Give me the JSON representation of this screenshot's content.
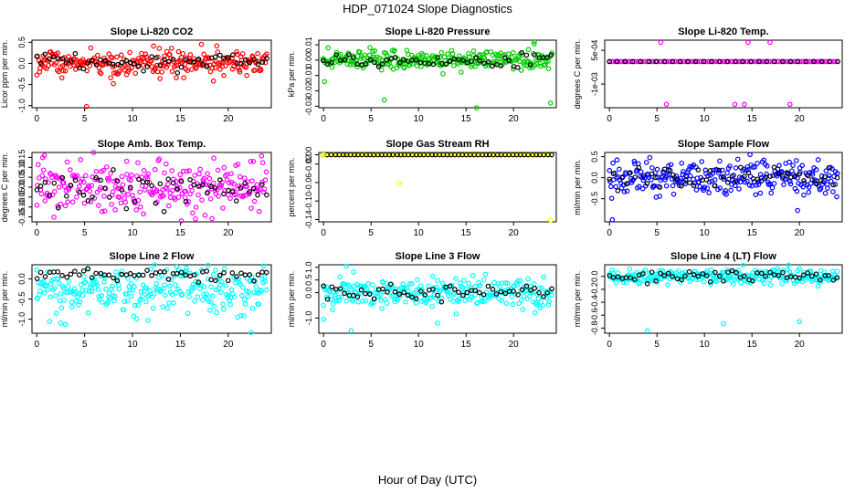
{
  "page": {
    "title": "HDP_071024  Slope Diagnostics",
    "x_caption": "Hour of Day (UTC)"
  },
  "colors": {
    "black": "#000000",
    "red": "#ff0000",
    "green": "#00cd00",
    "magenta": "#ff00ff",
    "yellow": "#ffff00",
    "blue": "#0000ff",
    "cyan": "#00ffff"
  },
  "chart_data": [
    {
      "type": "scatter",
      "title": "Slope Li-820 CO2",
      "ylabel": "Licor ppm per min.",
      "xlim": [
        -0.5,
        24.5
      ],
      "ylim": [
        -1.05,
        0.55
      ],
      "x_ticks": [
        "0",
        "5",
        "10",
        "15",
        "20"
      ],
      "y_ticks": [
        "-1.0",
        "-0.5",
        "0.0",
        "0.5"
      ],
      "y_tick_values": [
        -1.0,
        -0.5,
        0.0,
        0.5
      ],
      "series_colors": [
        "red",
        "black"
      ],
      "series": [
        {
          "values": {
            "n": 260,
            "center": 0.0,
            "spread": 0.16
          }
        },
        {
          "values": {
            "n": 55,
            "center": 0.05,
            "spread": 0.1
          }
        }
      ],
      "outliers": [
        [
          5.2,
          -1.02
        ],
        [
          8.0,
          -0.48
        ],
        [
          17.2,
          0.45
        ]
      ]
    },
    {
      "type": "scatter",
      "title": "Slope Li-820 Pressure",
      "ylabel": "kPa per min.",
      "xlim": [
        -0.5,
        24.5
      ],
      "ylim": [
        -0.031,
        0.013
      ],
      "x_ticks": [
        "0",
        "5",
        "10",
        "15",
        "20"
      ],
      "y_ticks": [
        "-0.03",
        "-0.02",
        "-0.01",
        "0.00",
        "0.01"
      ],
      "y_tick_values": [
        -0.03,
        -0.02,
        -0.01,
        0.0,
        0.01
      ],
      "series_colors": [
        "green",
        "black"
      ],
      "series": [
        {
          "values": {
            "n": 260,
            "center": 0.0,
            "spread": 0.003
          }
        },
        {
          "values": {
            "n": 55,
            "center": -0.001,
            "spread": 0.002
          }
        }
      ],
      "outliers": [
        [
          0.1,
          -0.014
        ],
        [
          6.4,
          -0.026
        ],
        [
          16.1,
          -0.031
        ],
        [
          22.2,
          0.012
        ],
        [
          23.9,
          -0.028
        ]
      ]
    },
    {
      "type": "scatter",
      "title": "Slope Li-820 Temp.",
      "ylabel": "degrees C per min.",
      "xlim": [
        -0.5,
        24.5
      ],
      "ylim": [
        -0.00205,
        0.00095
      ],
      "x_ticks": [
        "0",
        "5",
        "10",
        "15",
        "20"
      ],
      "y_ticks": [
        "-1e-03",
        "5e-04"
      ],
      "y_tick_values": [
        -0.001,
        0.0005
      ],
      "series_colors": [
        "magenta",
        "black"
      ],
      "series": [
        {
          "values": {
            "n": 110,
            "center": 0.0,
            "spread": 0.0
          }
        },
        {
          "values": {
            "n": 30,
            "center": 0.0,
            "spread": 0.0
          }
        }
      ],
      "outliers": [
        [
          5.4,
          0.00085
        ],
        [
          14.6,
          0.00085
        ],
        [
          16.9,
          0.00085
        ],
        [
          6.0,
          -0.0019
        ],
        [
          13.2,
          -0.0019
        ],
        [
          14.2,
          -0.0019
        ],
        [
          19.0,
          -0.0019
        ]
      ]
    },
    {
      "type": "scatter",
      "title": "Slope Amb. Box Temp.",
      "ylabel": "degrees C per min.",
      "xlim": [
        -0.5,
        24.5
      ],
      "ylim": [
        -0.175,
        0.175
      ],
      "x_ticks": [
        "0",
        "5",
        "10",
        "15",
        "20"
      ],
      "y_ticks": [
        "-0.15",
        "-0.10",
        "-0.05",
        "0.00",
        "0.05",
        "0.10",
        "0.15"
      ],
      "y_tick_values": [
        -0.15,
        -0.1,
        -0.05,
        0.0,
        0.05,
        0.1,
        0.15
      ],
      "series_colors": [
        "magenta",
        "black"
      ],
      "series": [
        {
          "values": {
            "n": 260,
            "center": 0.0,
            "spread": 0.06
          }
        },
        {
          "values": {
            "n": 55,
            "center": 0.0,
            "spread": 0.05
          }
        }
      ],
      "outliers": [
        [
          0.8,
          0.16
        ],
        [
          15.1,
          -0.17
        ]
      ]
    },
    {
      "type": "scatter",
      "title": "Slope Gas Stream RH",
      "ylabel": "percent per min.",
      "xlim": [
        -0.5,
        24.5
      ],
      "ylim": [
        -0.145,
        0.005
      ],
      "x_ticks": [
        "0",
        "5",
        "10",
        "15",
        "20"
      ],
      "y_ticks": [
        "-0.14",
        "-0.10",
        "-0.06",
        "-0.02"
      ],
      "y_tick_values": [
        -0.14,
        -0.1,
        -0.06,
        -0.02
      ],
      "extra_y_ticks": [
        "0.00"
      ],
      "extra_y_tick_values": [
        0.0
      ],
      "series_colors": [
        "yellow",
        "black"
      ],
      "series": [
        {
          "values": {
            "n": 90,
            "center": 0.0,
            "spread": 0.0
          }
        },
        {
          "values": {
            "n": 60,
            "center": 0.0,
            "spread": 0.0
          }
        }
      ],
      "outliers": [
        [
          0.0,
          0.0
        ],
        [
          8.0,
          -0.062
        ],
        [
          23.9,
          -0.141
        ]
      ]
    },
    {
      "type": "scatter",
      "title": "Slope Sample Flow",
      "ylabel": "ml/min per min.",
      "xlim": [
        -0.5,
        24.5
      ],
      "ylim": [
        -1.05,
        0.6
      ],
      "x_ticks": [
        "0",
        "5",
        "10",
        "15",
        "20"
      ],
      "y_ticks": [
        "-0.5",
        "0.0",
        "0.5"
      ],
      "y_tick_values": [
        -0.5,
        0.0,
        0.5
      ],
      "series_colors": [
        "blue",
        "black"
      ],
      "series": [
        {
          "values": {
            "n": 260,
            "center": 0.0,
            "spread": 0.2
          }
        },
        {
          "values": {
            "n": 55,
            "center": 0.0,
            "spread": 0.12
          }
        }
      ],
      "outliers": [
        [
          0.3,
          -1.0
        ],
        [
          14.8,
          0.55
        ],
        [
          19.8,
          -0.78
        ]
      ]
    },
    {
      "type": "scatter",
      "title": "Slope Line 2 Flow",
      "ylabel": "ml/min per min.",
      "xlim": [
        -0.5,
        24.5
      ],
      "ylim": [
        -1.35,
        0.35
      ],
      "x_ticks": [
        "0",
        "5",
        "10",
        "15",
        "20"
      ],
      "y_ticks": [
        "-1.0",
        "-0.5",
        "0.0"
      ],
      "y_tick_values": [
        -1.0,
        -0.5,
        0.0
      ],
      "series_colors": [
        "cyan",
        "black"
      ],
      "series": [
        {
          "values": {
            "n": 260,
            "center": -0.3,
            "spread": 0.3
          }
        },
        {
          "values": {
            "n": 55,
            "center": 0.1,
            "spread": 0.08
          }
        }
      ],
      "outliers": [
        [
          0.0,
          0.22
        ],
        [
          2.5,
          -1.1
        ],
        [
          17.9,
          0.34
        ],
        [
          22.4,
          -1.33
        ]
      ]
    },
    {
      "type": "scatter",
      "title": "Slope Line 3 Flow",
      "ylabel": "ml/min per min.",
      "xlim": [
        -0.5,
        24.5
      ],
      "ylim": [
        -1.6,
        1.1
      ],
      "x_ticks": [
        "0",
        "5",
        "10",
        "15",
        "20"
      ],
      "y_ticks": [
        "-1.0",
        "0.0",
        "0.5",
        "1.0"
      ],
      "y_tick_values": [
        -1.0,
        0.0,
        0.5,
        1.0
      ],
      "series_colors": [
        "cyan",
        "black"
      ],
      "series": [
        {
          "values": {
            "n": 260,
            "center": 0.0,
            "spread": 0.3
          }
        },
        {
          "values": {
            "n": 55,
            "center": 0.0,
            "spread": 0.15
          }
        }
      ],
      "outliers": [
        [
          2.4,
          1.05
        ],
        [
          2.9,
          -1.5
        ],
        [
          12.0,
          -1.2
        ],
        [
          0.0,
          -1.05
        ]
      ]
    },
    {
      "type": "scatter",
      "title": "Slope Line 4 (LT) Flow",
      "ylabel": "ml/min per min.",
      "xlim": [
        -0.5,
        24.5
      ],
      "ylim": [
        -0.88,
        0.18
      ],
      "x_ticks": [
        "0",
        "5",
        "10",
        "15",
        "20"
      ],
      "y_ticks": [
        "-0.8",
        "-0.6",
        "-0.4",
        "-0.2",
        "0.0"
      ],
      "y_tick_values": [
        -0.8,
        -0.6,
        -0.4,
        -0.2,
        0.0
      ],
      "series_colors": [
        "cyan",
        "black"
      ],
      "series": [
        {
          "values": {
            "n": 240,
            "center": 0.0,
            "spread": 0.06
          }
        },
        {
          "values": {
            "n": 55,
            "center": 0.0,
            "spread": 0.04
          }
        }
      ],
      "outliers": [
        [
          4.0,
          -0.84
        ],
        [
          12.0,
          -0.73
        ],
        [
          20.0,
          -0.7
        ]
      ]
    }
  ]
}
